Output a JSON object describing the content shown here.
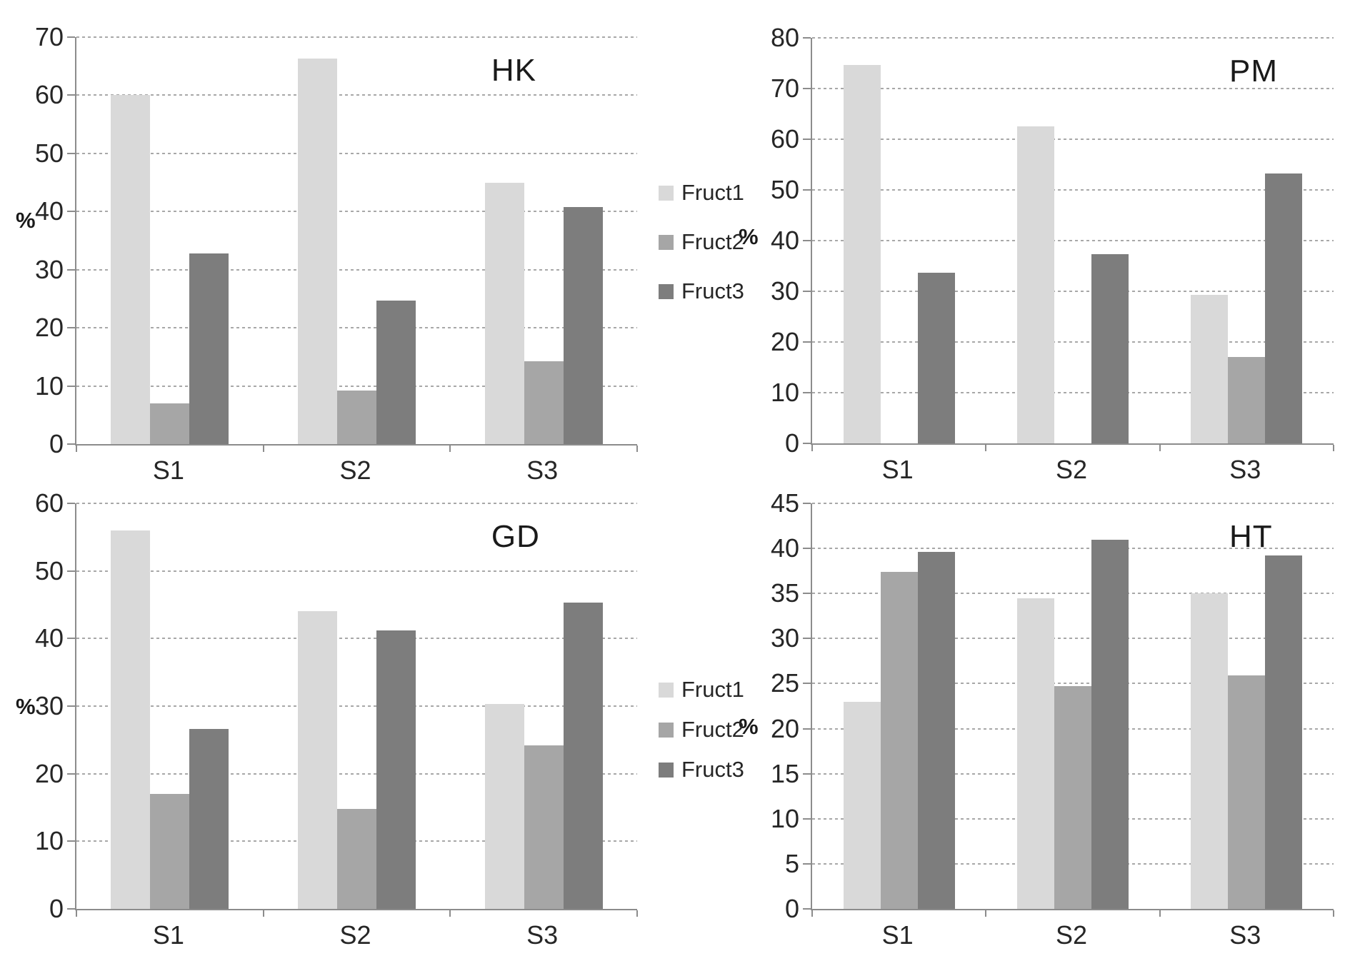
{
  "figure": {
    "background": "#ffffff",
    "text_color": "#262626"
  },
  "series_colors": {
    "Fruct1": "#d9d9d9",
    "Fruct2": "#a6a6a6",
    "Fruct3": "#7d7d7d"
  },
  "legend": {
    "position": "middle-column, one per chart row",
    "items": [
      {
        "label": "Fruct1",
        "color": "#d9d9d9"
      },
      {
        "label": "Fruct2",
        "color": "#a6a6a6"
      },
      {
        "label": "Fruct3",
        "color": "#7d7d7d"
      }
    ]
  },
  "chart_data": [
    {
      "type": "bar",
      "title": "HK",
      "ylabel": "%",
      "categories": [
        "S1",
        "S2",
        "S3"
      ],
      "series": [
        {
          "name": "Fruct1",
          "values": [
            60,
            66.3,
            45
          ]
        },
        {
          "name": "Fruct2",
          "values": [
            7,
            9.2,
            14.2
          ]
        },
        {
          "name": "Fruct3",
          "values": [
            32.8,
            24.7,
            40.8
          ]
        }
      ],
      "ylim": [
        0,
        70
      ],
      "ytick_step": 10,
      "grid": true,
      "grid_style": "dashed"
    },
    {
      "type": "bar",
      "title": "PM",
      "ylabel": "%",
      "categories": [
        "S1",
        "S2",
        "S3"
      ],
      "series": [
        {
          "name": "Fruct1",
          "values": [
            74.6,
            62.6,
            29.3
          ]
        },
        {
          "name": "Fruct2",
          "values": [
            0,
            0,
            17
          ]
        },
        {
          "name": "Fruct3",
          "values": [
            33.7,
            37.3,
            53.2
          ]
        }
      ],
      "ylim": [
        0,
        80
      ],
      "ytick_step": 10,
      "grid": true,
      "grid_style": "dashed"
    },
    {
      "type": "bar",
      "title": "GD",
      "ylabel": "%",
      "categories": [
        "S1",
        "S2",
        "S3"
      ],
      "series": [
        {
          "name": "Fruct1",
          "values": [
            56,
            44,
            30.3
          ]
        },
        {
          "name": "Fruct2",
          "values": [
            17,
            14.8,
            24.2
          ]
        },
        {
          "name": "Fruct3",
          "values": [
            26.6,
            41.2,
            45.3
          ]
        }
      ],
      "ylim": [
        0,
        60
      ],
      "ytick_step": 10,
      "grid": true,
      "grid_style": "dashed"
    },
    {
      "type": "bar",
      "title": "HT",
      "ylabel": "%",
      "categories": [
        "S1",
        "S2",
        "S3"
      ],
      "series": [
        {
          "name": "Fruct1",
          "values": [
            23,
            34.5,
            35
          ]
        },
        {
          "name": "Fruct2",
          "values": [
            37.4,
            24.7,
            25.9
          ]
        },
        {
          "name": "Fruct3",
          "values": [
            39.6,
            41,
            39.2
          ]
        }
      ],
      "ylim": [
        0,
        45
      ],
      "ytick_step": 5,
      "grid": true,
      "grid_style": "dashed"
    }
  ]
}
